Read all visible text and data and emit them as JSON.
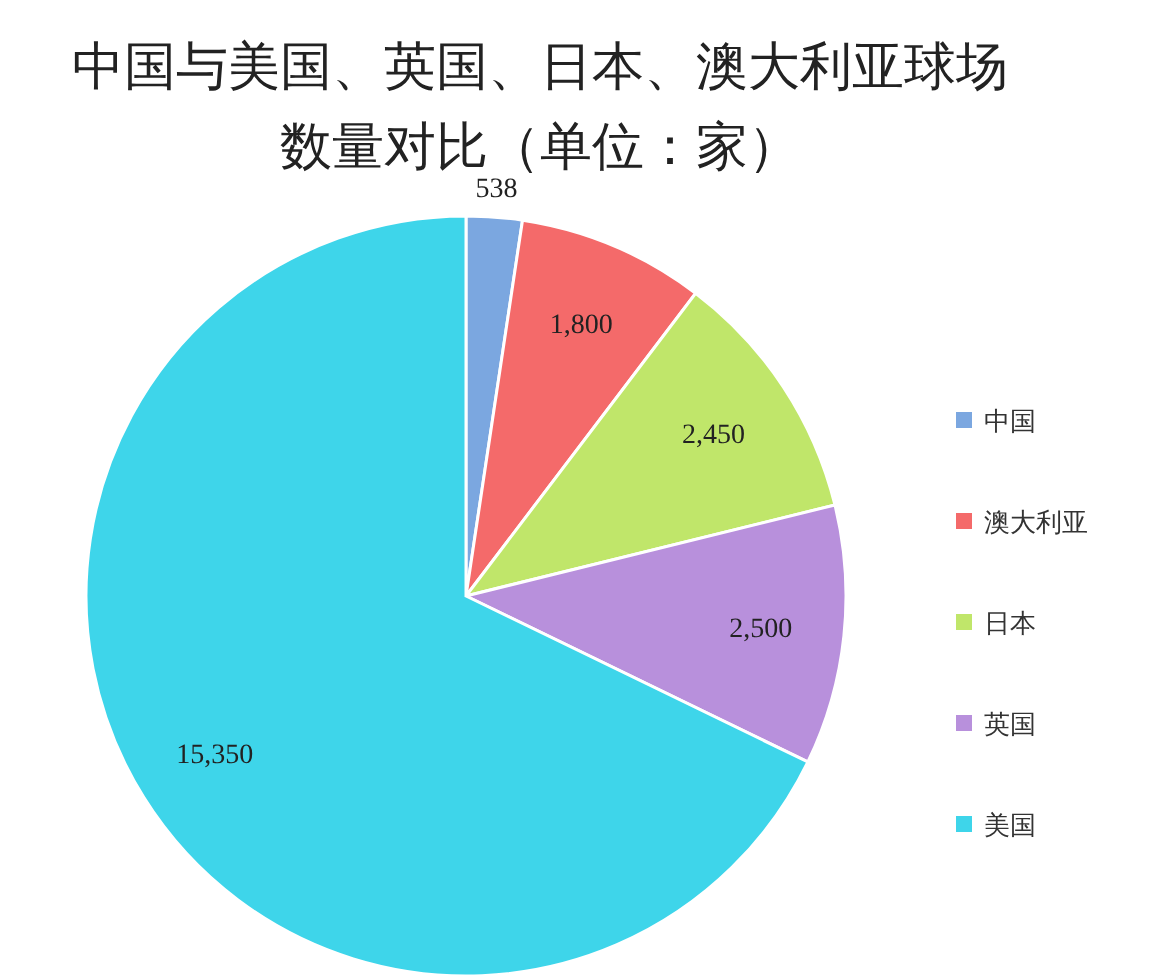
{
  "chart_data": {
    "type": "pie",
    "title": "中国与美国、英国、日本、澳大利亚球场数量对比（单位：家）",
    "categories": [
      "中国",
      "澳大利亚",
      "日本",
      "英国",
      "美国"
    ],
    "values": [
      538,
      1800,
      2450,
      2500,
      15350
    ],
    "value_labels": [
      "538",
      "1,800",
      "2,450",
      "2,500",
      "15,350"
    ],
    "colors": [
      "#7ba7e0",
      "#f46a6a",
      "#c0e66a",
      "#b890dc",
      "#3ed5ea"
    ],
    "legend": "right"
  }
}
